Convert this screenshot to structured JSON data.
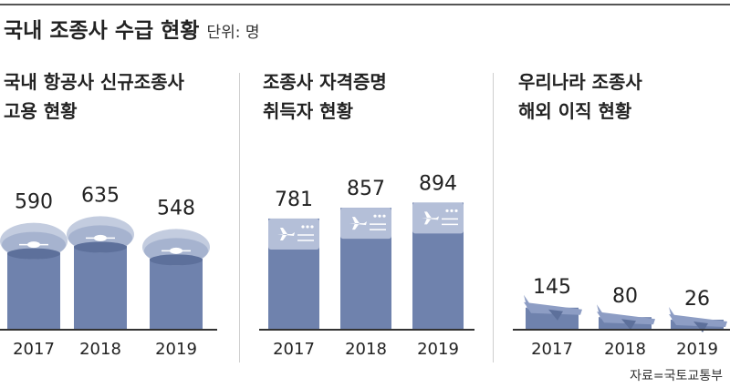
{
  "title": "국내 조종사 수급 현황",
  "unit": "단위: 명",
  "source": "자료=국토교통부",
  "colors": {
    "bar": "#6f82ad",
    "bar_dark": "#5d709b",
    "cap": "#a6b3cf",
    "cap_light": "#c3ccdf",
    "card": "#b4bfd8",
    "plane": "#8d9dc4"
  },
  "chart_data": [
    {
      "type": "bar",
      "title_lines": [
        "국내 항공사 신규조종사",
        "고용 현황"
      ],
      "icon": "pilot-cap-icon",
      "categories": [
        "2017",
        "2018",
        "2019"
      ],
      "values": [
        590,
        635,
        548
      ]
    },
    {
      "type": "bar",
      "title_lines": [
        "조종사 자격증명",
        "취득자 현황"
      ],
      "icon": "license-card-icon",
      "categories": [
        "2017",
        "2018",
        "2019"
      ],
      "values": [
        781,
        857,
        894
      ]
    },
    {
      "type": "bar",
      "title_lines": [
        "우리나라 조종사",
        "해외 이직 현황"
      ],
      "icon": "airplane-icon",
      "categories": [
        "2017",
        "2018",
        "2019"
      ],
      "values": [
        145,
        80,
        26
      ]
    }
  ]
}
